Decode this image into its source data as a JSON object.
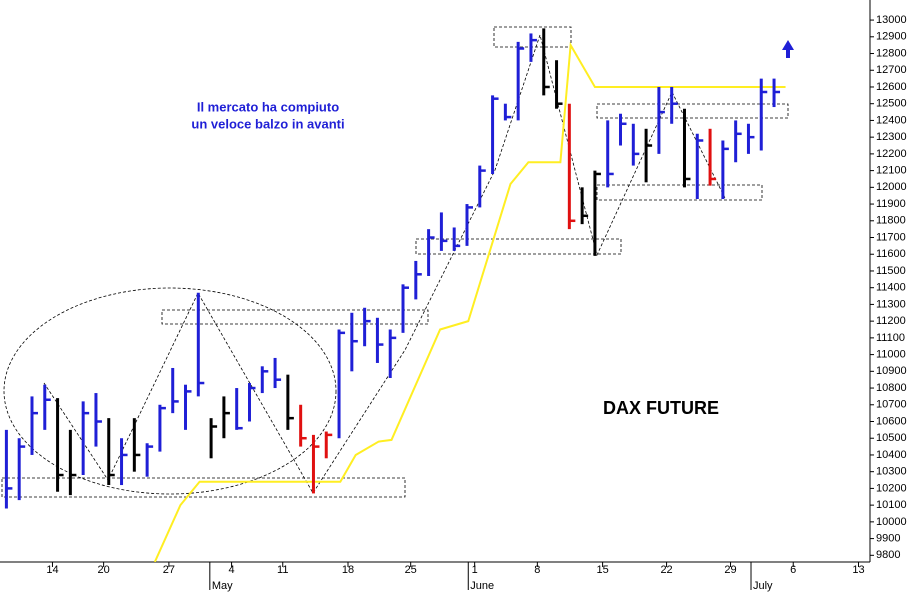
{
  "chart_data": {
    "type": "ohlc",
    "title": "DAX FUTURE",
    "annotations": [
      "Il mercato ha compiuto",
      "un veloce balzo in avanti"
    ],
    "x": [
      0,
      1,
      2,
      3,
      4,
      5,
      6,
      7,
      8,
      9,
      10,
      11,
      12,
      13,
      14,
      15,
      16,
      17,
      18,
      19,
      20,
      21,
      22,
      23,
      24,
      25,
      26,
      27,
      28,
      29,
      30,
      31,
      32,
      33,
      34,
      35,
      36,
      37,
      38,
      39,
      40,
      41,
      42,
      43,
      44,
      45,
      46,
      47,
      48,
      49,
      50,
      51,
      52,
      53,
      54,
      55,
      56,
      57,
      58,
      59,
      60
    ],
    "high": [
      10550,
      10500,
      10750,
      10820,
      10740,
      10550,
      10720,
      10770,
      10620,
      10500,
      10620,
      10470,
      10700,
      10920,
      10820,
      11370,
      10620,
      10750,
      10800,
      10830,
      10930,
      10980,
      10880,
      10700,
      10520,
      10540,
      11150,
      11250,
      11280,
      11220,
      11150,
      11420,
      11560,
      11750,
      11850,
      11760,
      11900,
      12130,
      12550,
      12500,
      12870,
      12920,
      12950,
      12760,
      12500,
      12000,
      12100,
      12400,
      12440,
      12380,
      12350,
      12600,
      12600,
      12470,
      12320,
      12350,
      12280,
      12400,
      12380,
      12650,
      12650
    ],
    "low": [
      10080,
      10130,
      10400,
      10550,
      10180,
      10160,
      10280,
      10450,
      10220,
      10220,
      10300,
      10270,
      10420,
      10650,
      10550,
      10750,
      10380,
      10500,
      10550,
      10600,
      10770,
      10800,
      10550,
      10450,
      10170,
      10380,
      10500,
      10900,
      11050,
      10950,
      10860,
      11130,
      11330,
      11470,
      11620,
      11620,
      11650,
      11880,
      12080,
      12400,
      12400,
      12750,
      12550,
      12470,
      11750,
      11780,
      11590,
      12000,
      12250,
      12130,
      12030,
      12200,
      12380,
      12000,
      11930,
      12010,
      11930,
      12150,
      12200,
      12220,
      12480
    ],
    "close": [
      10200,
      10450,
      10650,
      10730,
      10280,
      10280,
      10650,
      10600,
      10280,
      10400,
      10400,
      10450,
      10680,
      10720,
      10780,
      10830,
      10570,
      10650,
      10560,
      10800,
      10900,
      10850,
      10620,
      10500,
      10450,
      10520,
      11130,
      11080,
      11200,
      11060,
      11100,
      11400,
      11480,
      11700,
      11680,
      11650,
      11880,
      12100,
      12530,
      12420,
      12830,
      12880,
      12600,
      12500,
      11800,
      11830,
      12080,
      12080,
      12380,
      12200,
      12250,
      12450,
      12500,
      12050,
      12280,
      12050,
      12230,
      12320,
      12300,
      12570,
      12570
    ],
    "colors": [
      "#1f1fd6",
      "#1f1fd6",
      "#1f1fd6",
      "#1f1fd6",
      "#000000",
      "#000000",
      "#1f1fd6",
      "#1f1fd6",
      "#000000",
      "#1f1fd6",
      "#000000",
      "#1f1fd6",
      "#1f1fd6",
      "#1f1fd6",
      "#1f1fd6",
      "#1f1fd6",
      "#000000",
      "#000000",
      "#1f1fd6",
      "#1f1fd6",
      "#1f1fd6",
      "#1f1fd6",
      "#000000",
      "#e01010",
      "#e01010",
      "#e01010",
      "#1f1fd6",
      "#1f1fd6",
      "#1f1fd6",
      "#1f1fd6",
      "#1f1fd6",
      "#1f1fd6",
      "#1f1fd6",
      "#1f1fd6",
      "#1f1fd6",
      "#1f1fd6",
      "#1f1fd6",
      "#1f1fd6",
      "#1f1fd6",
      "#1f1fd6",
      "#1f1fd6",
      "#1f1fd6",
      "#000000",
      "#000000",
      "#e01010",
      "#000000",
      "#000000",
      "#1f1fd6",
      "#1f1fd6",
      "#1f1fd6",
      "#000000",
      "#1f1fd6",
      "#1f1fd6",
      "#000000",
      "#1f1fd6",
      "#e01010",
      "#1f1fd6",
      "#1f1fd6",
      "#1f1fd6",
      "#1f1fd6",
      "#1f1fd6"
    ],
    "line": {
      "color": "#ffee22",
      "x": [
        11.6,
        13.6,
        15.1,
        26.1,
        27.3,
        29.1,
        30.1,
        33.9,
        36.1,
        39.4,
        40.8,
        43.3,
        44.1,
        46.0,
        60.9
      ],
      "values": [
        9760,
        10100,
        10240,
        10240,
        10400,
        10480,
        10490,
        11150,
        11200,
        12020,
        12150,
        12150,
        12850,
        12600,
        12600
      ]
    },
    "xlim": [
      -0.5,
      67.5
    ],
    "ylim": [
      9760,
      13120
    ],
    "yticks": [
      9800,
      9900,
      10000,
      10100,
      10200,
      10300,
      10400,
      10500,
      10600,
      10700,
      10800,
      10900,
      11000,
      11100,
      11200,
      11300,
      11400,
      11500,
      11600,
      11700,
      11800,
      11900,
      12000,
      12100,
      12200,
      12300,
      12400,
      12500,
      12600,
      12700,
      12800,
      12900,
      13000
    ],
    "xticks": [
      {
        "value": 3.6,
        "label": "14"
      },
      {
        "value": 7.6,
        "label": "20"
      },
      {
        "value": 12.7,
        "label": "27"
      },
      {
        "value": 17.6,
        "label": "4"
      },
      {
        "value": 21.6,
        "label": "11"
      },
      {
        "value": 26.7,
        "label": "18"
      },
      {
        "value": 31.6,
        "label": "25"
      },
      {
        "value": 36.6,
        "label": "1"
      },
      {
        "value": 41.5,
        "label": "8"
      },
      {
        "value": 46.6,
        "label": "15"
      },
      {
        "value": 51.6,
        "label": "22"
      },
      {
        "value": 56.6,
        "label": "29"
      },
      {
        "value": 61.5,
        "label": "6"
      },
      {
        "value": 66.6,
        "label": "13"
      }
    ],
    "month_ticks": [
      {
        "value": 15.9,
        "label": "May"
      },
      {
        "value": 36.1,
        "label": "June"
      },
      {
        "value": 58.2,
        "label": "July"
      }
    ]
  }
}
